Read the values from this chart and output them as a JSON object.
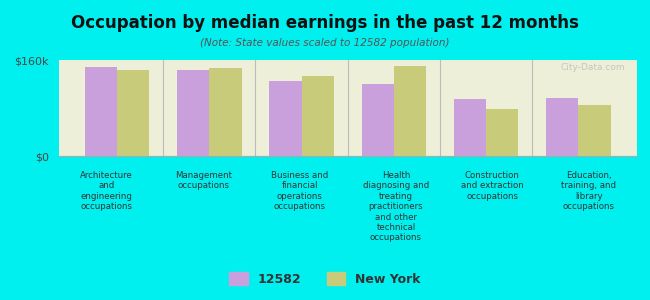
{
  "title": "Occupation by median earnings in the past 12 months",
  "subtitle": "(Note: State values scaled to 12582 population)",
  "background_color": "#00EFEF",
  "plot_bg_color": "#EEEFD8",
  "bar_color_local": "#C9A0DC",
  "bar_color_state": "#C8CC7A",
  "ylim": [
    0,
    160000
  ],
  "ytick_labels": [
    "$0",
    "$160k"
  ],
  "categories": [
    "Architecture\nand\nengineering\noccupations",
    "Management\noccupations",
    "Business and\nfinancial\noperations\noccupations",
    "Health\ndiagnosing and\ntreating\npractitioners\nand other\ntechnical\noccupations",
    "Construction\nand extraction\noccupations",
    "Education,\ntraining, and\nlibrary\noccupations"
  ],
  "values_local": [
    148000,
    143000,
    125000,
    120000,
    95000,
    97000
  ],
  "values_state": [
    143000,
    146000,
    133000,
    150000,
    78000,
    85000
  ],
  "legend_local": "12582",
  "legend_state": "New York",
  "watermark": "City-Data.com"
}
